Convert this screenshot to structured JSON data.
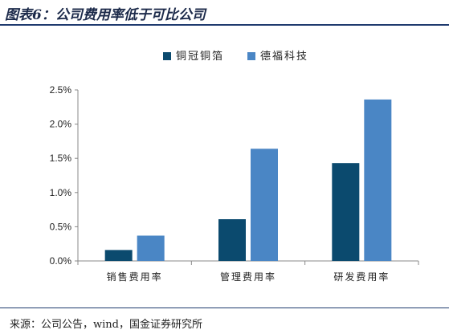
{
  "header": {
    "title": "图表6：公司费用率低于可比公司"
  },
  "footer": {
    "source": "来源：公司公告，wind，国金证券研究所"
  },
  "chart_data": {
    "type": "bar",
    "categories": [
      "销售费用率",
      "管理费用率",
      "研发费用率"
    ],
    "series": [
      {
        "name": "铜冠铜箔",
        "values": [
          0.16,
          0.61,
          1.43
        ],
        "color": "#0b4a6e"
      },
      {
        "name": "德福科技",
        "values": [
          0.37,
          1.64,
          2.36
        ],
        "color": "#4a86c5"
      }
    ],
    "ylim": [
      0,
      2.5
    ],
    "yticks": [
      "0.0%",
      "0.5%",
      "1.0%",
      "1.5%",
      "2.0%",
      "2.5%"
    ],
    "ytick_values": [
      0,
      0.5,
      1.0,
      1.5,
      2.0,
      2.5
    ],
    "unit": "%",
    "legend_position": "top-center",
    "grid": false
  }
}
